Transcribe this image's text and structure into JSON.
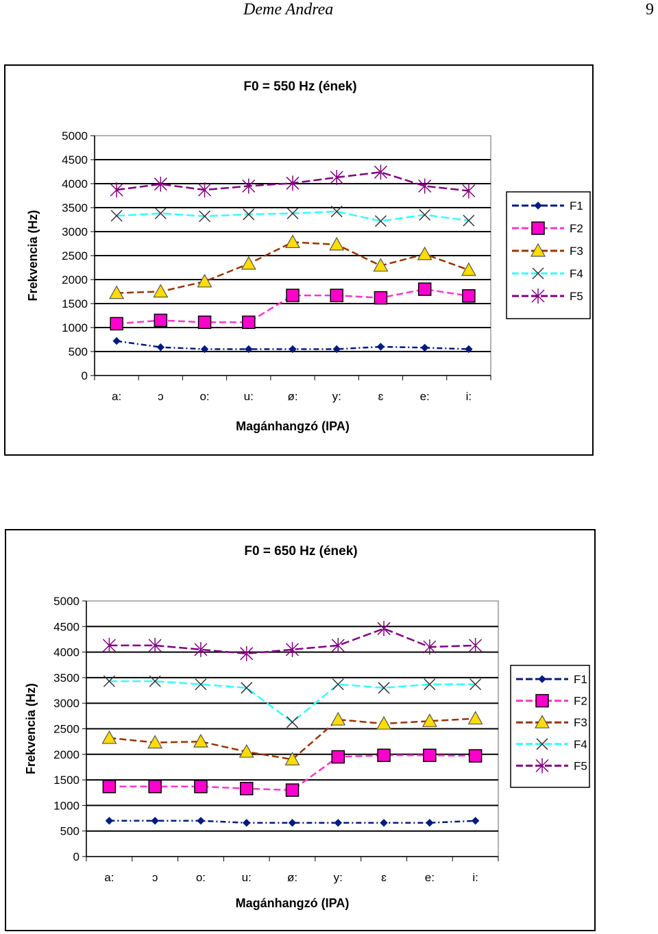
{
  "header": {
    "author": "Deme Andrea",
    "page_number": "9"
  },
  "colors": {
    "F1": "#001a80",
    "F2": "#ff33cc",
    "F3": "#993300",
    "F4": "#33ffff",
    "F5": "#800080",
    "triangle_fill": "#ffdd00",
    "square_fill": "#ff00cc",
    "plot_background": "#ffffff",
    "plot_border": "#999999"
  },
  "chart_data": [
    {
      "type": "line",
      "title": "F0 = 550 Hz (ének)",
      "xlabel": "Magánhangzó (IPA)",
      "ylabel": "Frekvencia (Hz)",
      "categories": [
        "a:",
        "ɔ",
        "o:",
        "u:",
        "ø:",
        "y:",
        "ɛ",
        "e:",
        "i:"
      ],
      "ylim": [
        0,
        5000
      ],
      "yticks": [
        "0",
        "500",
        "1000",
        "1500",
        "2000",
        "2500",
        "3000",
        "3500",
        "4000",
        "4500",
        "5000"
      ],
      "grid": true,
      "legend_position": "right",
      "series": [
        {
          "name": "F1",
          "marker": "diamond",
          "values": [
            720,
            590,
            550,
            550,
            550,
            550,
            600,
            580,
            550
          ]
        },
        {
          "name": "F2",
          "marker": "square",
          "values": [
            1080,
            1150,
            1110,
            1110,
            1670,
            1670,
            1620,
            1800,
            1660
          ]
        },
        {
          "name": "F3",
          "marker": "triangle",
          "values": [
            1720,
            1750,
            1960,
            2330,
            2780,
            2730,
            2290,
            2530,
            2200
          ]
        },
        {
          "name": "F4",
          "marker": "x",
          "values": [
            3330,
            3380,
            3320,
            3360,
            3380,
            3420,
            3220,
            3350,
            3230
          ]
        },
        {
          "name": "F5",
          "marker": "star",
          "values": [
            3870,
            3990,
            3870,
            3950,
            4010,
            4130,
            4240,
            3950,
            3850
          ]
        }
      ]
    },
    {
      "type": "line",
      "title": "F0 = 650 Hz (ének)",
      "xlabel": "Magánhangzó (IPA)",
      "ylabel": "Frekvencia (Hz)",
      "categories": [
        "a:",
        "ɔ",
        "o:",
        "u:",
        "ø:",
        "y:",
        "ɛ",
        "e:",
        "i:"
      ],
      "ylim": [
        0,
        5000
      ],
      "yticks": [
        "0",
        "500",
        "1000",
        "1500",
        "2000",
        "2500",
        "3000",
        "3500",
        "4000",
        "4500",
        "5000"
      ],
      "grid": true,
      "legend_position": "right",
      "series": [
        {
          "name": "F1",
          "marker": "diamond",
          "values": [
            700,
            700,
            700,
            660,
            660,
            660,
            660,
            660,
            700
          ]
        },
        {
          "name": "F2",
          "marker": "square",
          "values": [
            1370,
            1370,
            1370,
            1330,
            1300,
            1950,
            1980,
            1980,
            1970
          ]
        },
        {
          "name": "F3",
          "marker": "triangle",
          "values": [
            2320,
            2230,
            2250,
            2050,
            1900,
            2680,
            2600,
            2650,
            2700
          ]
        },
        {
          "name": "F4",
          "marker": "x",
          "values": [
            3430,
            3430,
            3370,
            3300,
            2630,
            3370,
            3300,
            3370,
            3370
          ]
        },
        {
          "name": "F5",
          "marker": "star",
          "values": [
            4130,
            4130,
            4050,
            3970,
            4050,
            4130,
            4460,
            4100,
            4130
          ]
        }
      ]
    }
  ]
}
